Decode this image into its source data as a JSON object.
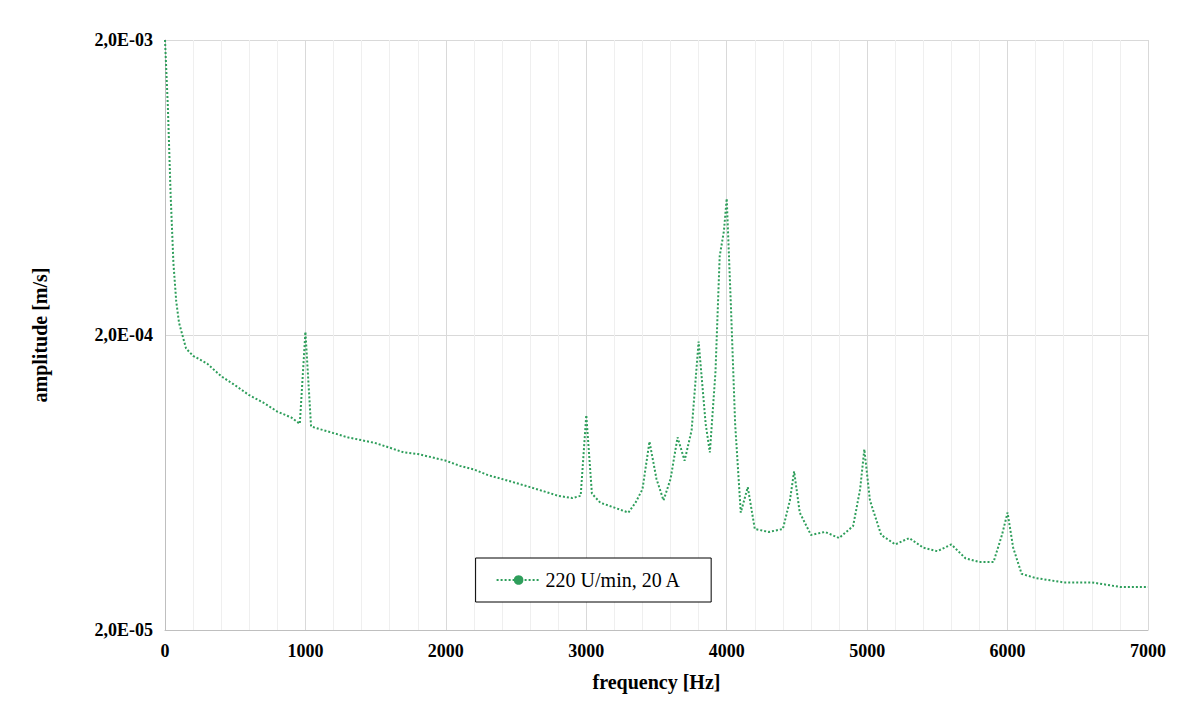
{
  "chart_data": {
    "type": "line",
    "x_label": "frequency [Hz]",
    "y_label": "amplitude [m/s]",
    "log": "y",
    "grid": true,
    "legend": "lower center",
    "xlim": [
      0,
      7000
    ],
    "xticks": [
      0,
      1000,
      2000,
      3000,
      4000,
      5000,
      6000,
      7000
    ],
    "ylim": [
      2e-05,
      0.002
    ],
    "yticks": [
      {
        "value": 2e-05,
        "label": "2,0E-05"
      },
      {
        "value": 0.0002,
        "label": "2,0E-04"
      },
      {
        "value": 0.002,
        "label": "2,0E-03"
      }
    ],
    "x": [
      0,
      20,
      40,
      60,
      80,
      100,
      150,
      200,
      300,
      400,
      500,
      600,
      700,
      800,
      900,
      960,
      1000,
      1040,
      1100,
      1200,
      1300,
      1400,
      1500,
      1600,
      1700,
      1800,
      1900,
      2000,
      2100,
      2200,
      2300,
      2400,
      2500,
      2600,
      2700,
      2800,
      2900,
      2960,
      3000,
      3040,
      3100,
      3200,
      3300,
      3350,
      3400,
      3450,
      3500,
      3550,
      3600,
      3650,
      3700,
      3750,
      3800,
      3850,
      3880,
      3920,
      3950,
      3980,
      4000,
      4030,
      4060,
      4100,
      4150,
      4200,
      4300,
      4400,
      4450,
      4480,
      4520,
      4600,
      4700,
      4800,
      4900,
      4950,
      4980,
      5020,
      5100,
      5200,
      5300,
      5400,
      5500,
      5600,
      5700,
      5800,
      5900,
      5960,
      6000,
      6040,
      6100,
      6200,
      6400,
      6600,
      6800,
      7000
    ],
    "series": [
      {
        "name": "220 U/min, 20 A",
        "color": "#2e9e5b",
        "line_style": "dotted",
        "values": [
          0.002,
          0.0012,
          0.0006,
          0.00035,
          0.00026,
          0.00022,
          0.00018,
          0.00017,
          0.00016,
          0.000145,
          0.000135,
          0.000125,
          0.000118,
          0.00011,
          0.000105,
          0.0001,
          0.000205,
          9.8e-05,
          9.6e-05,
          9.3e-05,
          9e-05,
          8.8e-05,
          8.6e-05,
          8.3e-05,
          8e-05,
          7.9e-05,
          7.7e-05,
          7.5e-05,
          7.2e-05,
          7e-05,
          6.7e-05,
          6.5e-05,
          6.3e-05,
          6.1e-05,
          5.9e-05,
          5.7e-05,
          5.6e-05,
          5.7e-05,
          0.000107,
          5.8e-05,
          5.4e-05,
          5.2e-05,
          5e-05,
          5.4e-05,
          6e-05,
          8.7e-05,
          6.5e-05,
          5.5e-05,
          6.5e-05,
          9e-05,
          7.5e-05,
          9.5e-05,
          0.00019,
          0.0001,
          8e-05,
          0.00015,
          0.00037,
          0.00045,
          0.00058,
          0.00025,
          0.0001,
          5e-05,
          6.1e-05,
          4.4e-05,
          4.3e-05,
          4.4e-05,
          5.5e-05,
          6.9e-05,
          5e-05,
          4.2e-05,
          4.3e-05,
          4.1e-05,
          4.5e-05,
          6e-05,
          8.2e-05,
          5.5e-05,
          4.2e-05,
          3.9e-05,
          4.1e-05,
          3.8e-05,
          3.7e-05,
          3.9e-05,
          3.5e-05,
          3.4e-05,
          3.4e-05,
          4.2e-05,
          5e-05,
          3.8e-05,
          3.1e-05,
          3e-05,
          2.9e-05,
          2.9e-05,
          2.8e-05,
          2.8e-05
        ]
      }
    ]
  }
}
